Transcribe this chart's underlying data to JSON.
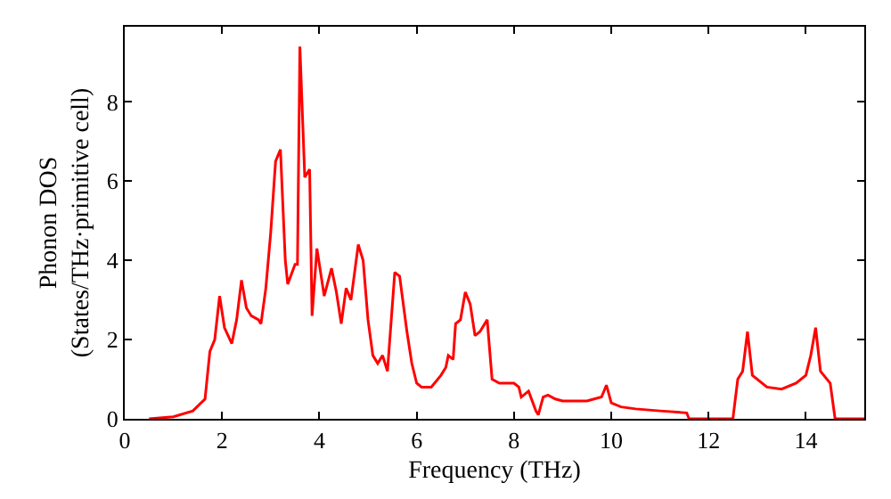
{
  "chart_data": {
    "type": "line",
    "xlabel": "Frequency (THz)",
    "ylabel": "Phonon DOS\n(States/THz·primitive cell)",
    "xlim": [
      0,
      15.2
    ],
    "ylim": [
      0,
      9.9
    ],
    "xticks": [
      0,
      2,
      4,
      6,
      8,
      10,
      12,
      14
    ],
    "yticks": [
      0,
      2,
      4,
      6,
      8
    ],
    "marker": "none",
    "line_style": "solid",
    "series": [
      {
        "color": "#ff0000",
        "x": [
          0.5,
          1.0,
          1.4,
          1.65,
          1.75,
          1.85,
          1.95,
          2.05,
          2.2,
          2.3,
          2.4,
          2.5,
          2.6,
          2.75,
          2.8,
          2.9,
          3.0,
          3.1,
          3.2,
          3.3,
          3.35,
          3.5,
          3.55,
          3.6,
          3.7,
          3.8,
          3.85,
          3.95,
          4.1,
          4.25,
          4.35,
          4.45,
          4.55,
          4.65,
          4.8,
          4.9,
          5.0,
          5.1,
          5.2,
          5.3,
          5.4,
          5.55,
          5.65,
          5.8,
          5.9,
          6.0,
          6.1,
          6.3,
          6.5,
          6.6,
          6.65,
          6.75,
          6.8,
          6.9,
          7.0,
          7.1,
          7.2,
          7.3,
          7.45,
          7.55,
          7.7,
          8.0,
          8.1,
          8.15,
          8.3,
          8.45,
          8.5,
          8.6,
          8.7,
          8.85,
          9.0,
          9.5,
          9.8,
          9.9,
          10.0,
          10.2,
          10.5,
          11.0,
          11.55,
          11.6,
          12.5,
          12.6,
          12.7,
          12.8,
          12.9,
          13.2,
          13.5,
          13.8,
          14.0,
          14.1,
          14.2,
          14.3,
          14.5,
          14.6,
          15.2
        ],
        "values": [
          0,
          0.05,
          0.2,
          0.5,
          1.7,
          2.0,
          3.1,
          2.3,
          1.9,
          2.5,
          3.5,
          2.8,
          2.6,
          2.5,
          2.4,
          3.3,
          4.7,
          6.5,
          6.8,
          4.0,
          3.4,
          3.9,
          3.9,
          9.4,
          6.1,
          6.3,
          2.6,
          4.3,
          3.1,
          3.8,
          3.2,
          2.4,
          3.3,
          3.0,
          4.4,
          4.0,
          2.5,
          1.6,
          1.4,
          1.6,
          1.2,
          3.7,
          3.6,
          2.2,
          1.4,
          0.9,
          0.8,
          0.8,
          1.1,
          1.3,
          1.6,
          1.5,
          2.4,
          2.5,
          3.2,
          2.9,
          2.1,
          2.2,
          2.5,
          1.0,
          0.9,
          0.9,
          0.8,
          0.55,
          0.7,
          0.2,
          0.1,
          0.55,
          0.6,
          0.5,
          0.45,
          0.45,
          0.55,
          0.85,
          0.4,
          0.3,
          0.25,
          0.2,
          0.15,
          0,
          0,
          1.0,
          1.2,
          2.2,
          1.1,
          0.8,
          0.75,
          0.9,
          1.1,
          1.6,
          2.3,
          1.2,
          0.9,
          0,
          0
        ]
      }
    ]
  }
}
